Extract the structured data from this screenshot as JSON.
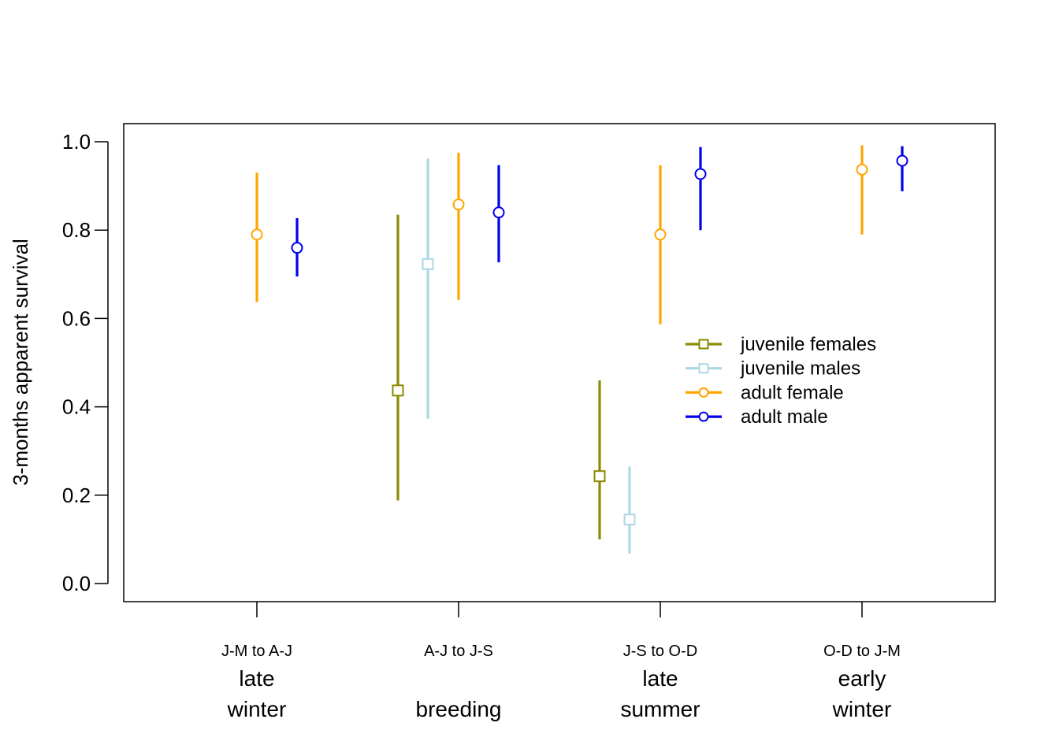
{
  "chart_data": {
    "type": "scatter",
    "subtype": "point-range (estimate with confidence interval)",
    "ylabel": "3-months apparent survival",
    "ylim": [
      -0.04,
      1.04
    ],
    "yticks": [
      "0.0",
      "0.2",
      "0.4",
      "0.6",
      "0.8",
      "1.0"
    ],
    "ytick_values": [
      0.0,
      0.2,
      0.4,
      0.6,
      0.8,
      1.0
    ],
    "categories": [
      {
        "period": "J-M to A-J",
        "season_line1": "late",
        "season_line2": "winter"
      },
      {
        "period": "A-J to J-S",
        "season_line1": "",
        "season_line2": "breeding"
      },
      {
        "period": "J-S to O-D",
        "season_line1": "late",
        "season_line2": "summer"
      },
      {
        "period": "O-D to J-M",
        "season_line1": "early",
        "season_line2": "winter"
      }
    ],
    "series": [
      {
        "name": "juvenile females",
        "color": "#8B8B00",
        "marker": "square",
        "points": [
          null,
          {
            "y": 0.437,
            "lo": 0.188,
            "hi": 0.835
          },
          {
            "y": 0.243,
            "lo": 0.1,
            "hi": 0.46
          },
          null
        ]
      },
      {
        "name": "juvenile males",
        "color": "#ADD8E6",
        "marker": "square",
        "points": [
          null,
          {
            "y": 0.723,
            "lo": 0.373,
            "hi": 0.962
          },
          {
            "y": 0.145,
            "lo": 0.068,
            "hi": 0.265
          },
          null
        ]
      },
      {
        "name": "adult female",
        "color": "#FFA500",
        "marker": "circle",
        "points": [
          {
            "y": 0.79,
            "lo": 0.637,
            "hi": 0.93
          },
          {
            "y": 0.858,
            "lo": 0.642,
            "hi": 0.975
          },
          {
            "y": 0.79,
            "lo": 0.587,
            "hi": 0.947
          },
          {
            "y": 0.937,
            "lo": 0.79,
            "hi": 0.992
          }
        ]
      },
      {
        "name": "adult male",
        "color": "#0000EE",
        "marker": "circle",
        "points": [
          {
            "y": 0.76,
            "lo": 0.695,
            "hi": 0.827
          },
          {
            "y": 0.84,
            "lo": 0.727,
            "hi": 0.947
          },
          {
            "y": 0.927,
            "lo": 0.8,
            "hi": 0.988
          },
          {
            "y": 0.957,
            "lo": 0.888,
            "hi": 0.99
          }
        ]
      }
    ],
    "legend_position": "right-center",
    "grid": false
  }
}
